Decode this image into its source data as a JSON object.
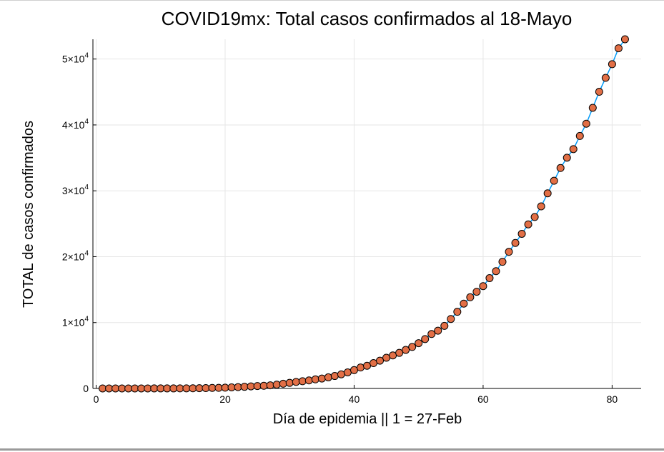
{
  "chart_data": {
    "type": "scatter",
    "title": "COVID19mx: Total casos confirmados al 18-Mayo",
    "xlabel": "Día de epidemia || 1 = 27-Feb",
    "ylabel": "TOTAL de casos confirmados",
    "xlim": [
      -0.5,
      84.5
    ],
    "ylim": [
      0,
      53000
    ],
    "grid": true,
    "legend": "none",
    "x_ticks": [
      {
        "value": 0,
        "label": "0"
      },
      {
        "value": 20,
        "label": "20"
      },
      {
        "value": 40,
        "label": "40"
      },
      {
        "value": 60,
        "label": "60"
      },
      {
        "value": 80,
        "label": "80"
      }
    ],
    "y_ticks": [
      {
        "value": 0,
        "label": "0",
        "mant": "",
        "exp": ""
      },
      {
        "value": 10000,
        "label": "",
        "mant": "1×10",
        "exp": "4"
      },
      {
        "value": 20000,
        "label": "",
        "mant": "2×10",
        "exp": "4"
      },
      {
        "value": 30000,
        "label": "",
        "mant": "3×10",
        "exp": "4"
      },
      {
        "value": 40000,
        "label": "",
        "mant": "4×10",
        "exp": "4"
      },
      {
        "value": 50000,
        "label": "",
        "mant": "5×10",
        "exp": "4"
      }
    ],
    "colors": {
      "marker": "#e26f46",
      "marker_edge": "#000000",
      "line": "#009af9"
    },
    "x": [
      1,
      2,
      3,
      4,
      5,
      6,
      7,
      8,
      9,
      10,
      11,
      12,
      13,
      14,
      15,
      16,
      17,
      18,
      19,
      20,
      21,
      22,
      23,
      24,
      25,
      26,
      27,
      28,
      29,
      30,
      31,
      32,
      33,
      34,
      35,
      36,
      37,
      38,
      39,
      40,
      41,
      42,
      43,
      44,
      45,
      46,
      47,
      48,
      49,
      50,
      51,
      52,
      53,
      54,
      55,
      56,
      57,
      58,
      59,
      60,
      61,
      62,
      63,
      64,
      65,
      66,
      67,
      68,
      69,
      70,
      71,
      72,
      73,
      74,
      75,
      76,
      77,
      78,
      79,
      80,
      81,
      82
    ],
    "values": [
      1,
      4,
      5,
      5,
      5,
      5,
      5,
      6,
      7,
      7,
      7,
      8,
      12,
      16,
      26,
      41,
      53,
      82,
      93,
      118,
      164,
      203,
      251,
      316,
      367,
      405,
      475,
      585,
      717,
      848,
      993,
      1094,
      1215,
      1378,
      1510,
      1688,
      1890,
      2143,
      2439,
      2785,
      3181,
      3441,
      3844,
      4219,
      4661,
      5014,
      5399,
      5847,
      6297,
      6875,
      7497,
      8261,
      8772,
      9501,
      10544,
      11633,
      12872,
      13842,
      14677,
      15529,
      16752,
      17799,
      19224,
      20739,
      22088,
      23471,
      24905,
      26025,
      27634,
      29616,
      31522,
      33460,
      35022,
      36327,
      38324,
      40186,
      42595,
      45032,
      47144,
      49219,
      51633,
      53000
    ]
  }
}
